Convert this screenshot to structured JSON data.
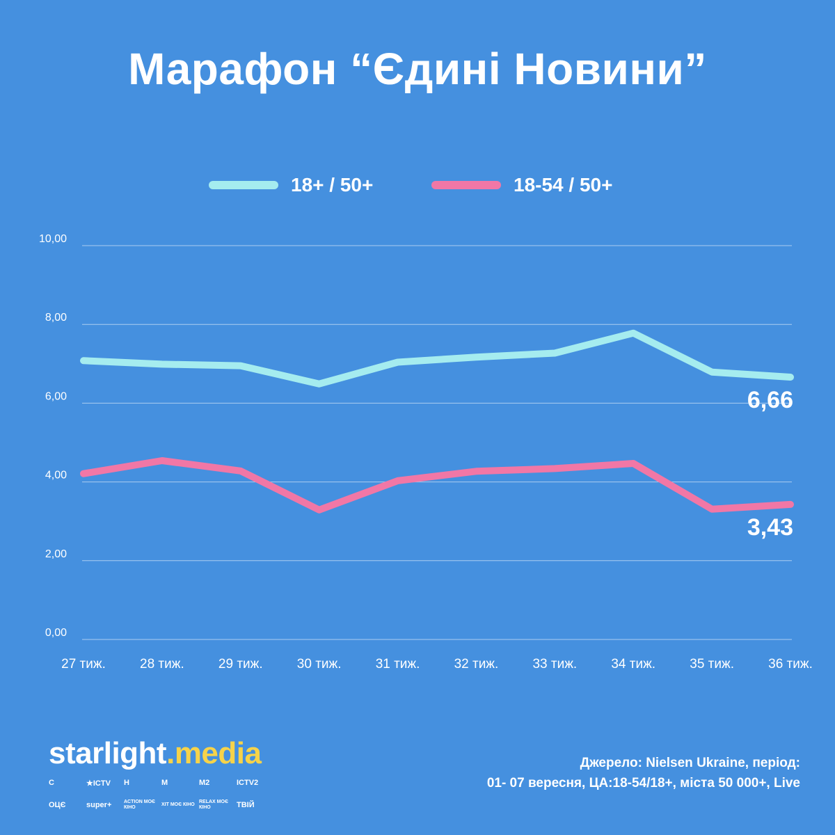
{
  "title": "Марафон “Єдині Новини”",
  "legend": [
    {
      "label": "18+ / 50+",
      "color": "#a5ecef"
    },
    {
      "label": "18-54 / 50+",
      "color": "#f177a6"
    }
  ],
  "chart_data": {
    "type": "line",
    "x": [
      "27 тиж.",
      "28 тиж.",
      "29 тиж.",
      "30 тиж.",
      "31 тиж.",
      "32 тиж.",
      "33 тиж.",
      "34 тиж.",
      "35 тиж.",
      "36 тиж."
    ],
    "series": [
      {
        "name": "18+ / 50+",
        "color": "#a5ecef",
        "values": [
          7.08,
          6.99,
          6.95,
          6.49,
          7.04,
          7.17,
          7.27,
          7.78,
          6.79,
          6.66
        ],
        "end_label": "6,66"
      },
      {
        "name": "18-54 / 50+",
        "color": "#f177a6",
        "values": [
          4.21,
          4.54,
          4.28,
          3.29,
          4.03,
          4.27,
          4.34,
          4.47,
          3.31,
          3.43
        ],
        "end_label": "3,43"
      }
    ],
    "y_ticks": [
      "0,00",
      "2,00",
      "4,00",
      "6,00",
      "8,00",
      "10,00"
    ],
    "ylim": [
      0,
      10
    ],
    "grid": true,
    "legend_position": "top-center"
  },
  "footer": {
    "logo_main": "starlight",
    "logo_dot": ".",
    "logo_accent": "media",
    "channels": [
      "С",
      "★ICTV",
      "Н",
      "М",
      "М2",
      "ICTV2",
      "ОЦЄ",
      "super+",
      "ACTION МОЄ КІНО",
      "ХІТ МОЄ КІНО",
      "RELAX МОЄ КІНО",
      "ТВІЙ"
    ],
    "source_line1": "Джерело: Nielsen Ukraine, період:",
    "source_line2": "01- 07 вересня, ЦА:18-54/18+, міста 50 000+, Live"
  }
}
